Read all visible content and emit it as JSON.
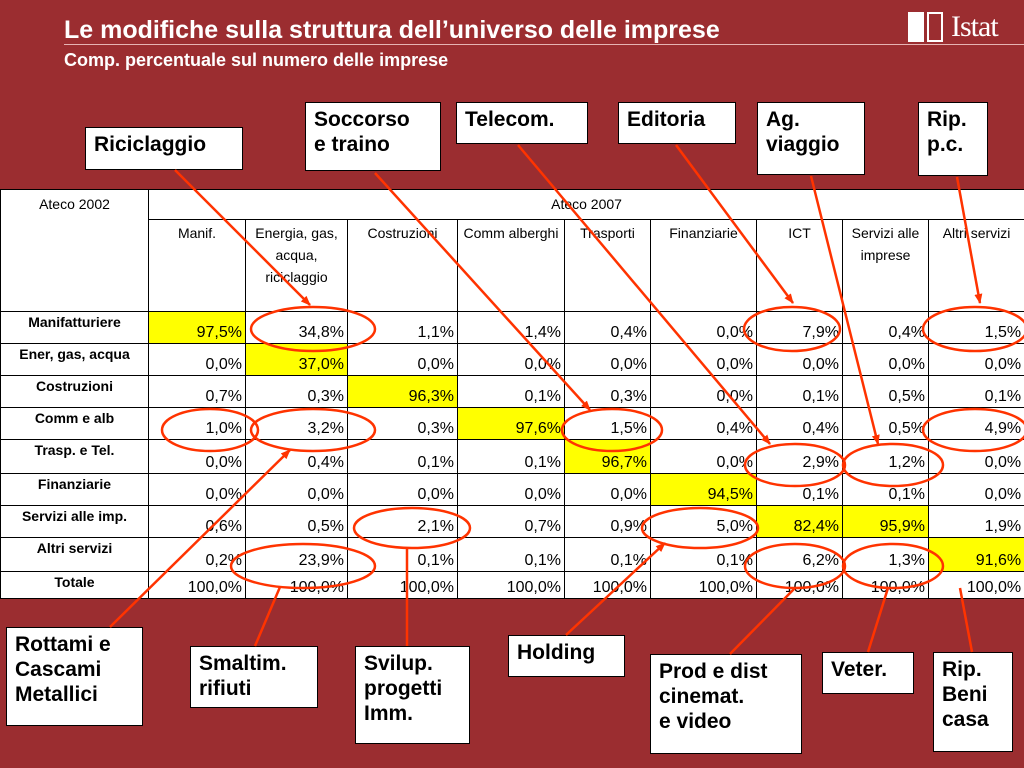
{
  "header": {
    "title": "Le modifiche sulla struttura dell’universo delle imprese",
    "subtitle": "Comp. percentuale sul numero delle imprese",
    "logo_text": "Istat"
  },
  "table": {
    "corner_label": "Ateco 2002",
    "group_label": "Ateco 2007",
    "columns": [
      "Manif.",
      "Energia, gas, acqua, riciclaggio",
      "Costruzioni",
      "Comm alberghi",
      "Trasporti",
      "Finanziarie",
      "ICT",
      "Servizi alle imprese",
      "Altri servizi"
    ],
    "rows": [
      {
        "label": "Manifatturiere",
        "values": [
          "97,5%",
          "34,8%",
          "1,1%",
          "1,4%",
          "0,4%",
          "0,0%",
          "7,9%",
          "0,4%",
          "1,5%"
        ],
        "highlight": 0
      },
      {
        "label": "Ener, gas, acqua",
        "values": [
          "0,0%",
          "37,0%",
          "0,0%",
          "0,0%",
          "0,0%",
          "0,0%",
          "0,0%",
          "0,0%",
          "0,0%"
        ],
        "highlight": 1
      },
      {
        "label": "Costruzioni",
        "values": [
          "0,7%",
          "0,3%",
          "96,3%",
          "0,1%",
          "0,3%",
          "0,0%",
          "0,1%",
          "0,5%",
          "0,1%"
        ],
        "highlight": 2
      },
      {
        "label": "Comm e alb",
        "values": [
          "1,0%",
          "3,2%",
          "0,3%",
          "97,6%",
          "1,5%",
          "0,4%",
          "0,4%",
          "0,5%",
          "4,9%"
        ],
        "highlight": 3
      },
      {
        "label": "Trasp. e Tel.",
        "values": [
          "0,0%",
          "0,4%",
          "0,1%",
          "0,1%",
          "96,7%",
          "0,0%",
          "2,9%",
          "1,2%",
          "0,0%"
        ],
        "highlight": 4
      },
      {
        "label": "Finanziarie",
        "values": [
          "0,0%",
          "0,0%",
          "0,0%",
          "0,0%",
          "0,0%",
          "94,5%",
          "0,1%",
          "0,1%",
          "0,0%"
        ],
        "highlight": 5
      },
      {
        "label": "Servizi alle imp.",
        "values": [
          "0,6%",
          "0,5%",
          "2,1%",
          "0,7%",
          "0,9%",
          "5,0%",
          "82,4%",
          "95,9%",
          "1,9%"
        ],
        "highlight": [
          6,
          7
        ]
      },
      {
        "label": "Altri servizi",
        "values": [
          "0,2%",
          "23,9%",
          "0,1%",
          "0,1%",
          "0,1%",
          "0,1%",
          "6,2%",
          "1,3%",
          "91,6%"
        ],
        "highlight": 8
      },
      {
        "label": "Totale",
        "values": [
          "100,0%",
          "100,0%",
          "100,0%",
          "100,0%",
          "100,0%",
          "100,0%",
          "100,0%",
          "100,0%",
          "100,0%"
        ],
        "highlight": null
      }
    ]
  },
  "callouts": {
    "riciclaggio": "Riciclaggio",
    "soccorso": "Soccorso\ne traino",
    "telecom": "Telecom.",
    "editoria": "Editoria",
    "ag_viaggio": "Ag.\nviaggio",
    "rip_pc": "Rip.\np.c.",
    "rottami": "Rottami e\nCascami\nMetallici",
    "smaltim": "Smaltim.\nrifiuti",
    "svilup": "Svilup.\nprogetti\nImm.",
    "holding": "Holding",
    "prod_dist": "Prod e dist\ncinemat.\ne video",
    "veter": "Veter.",
    "rip_beni": "Rip.\nBeni\ncasa"
  },
  "colors": {
    "background": "#9b2d30",
    "highlight": "#ffff00",
    "annotation": "#ff3300"
  }
}
